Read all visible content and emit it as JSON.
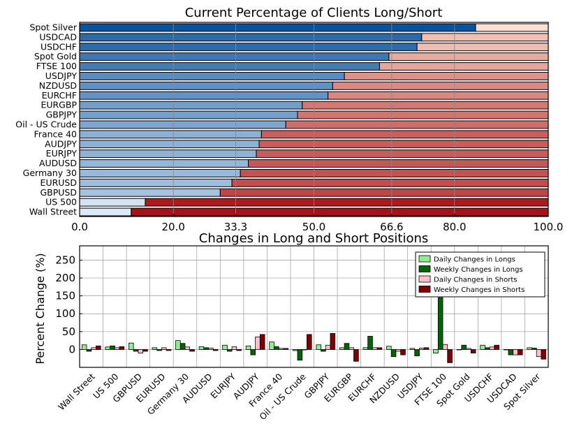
{
  "chart_data": [
    {
      "type": "bar",
      "orientation": "horizontal",
      "stacked": true,
      "title": "Current Percentage of Clients Long/Short",
      "categories": [
        "Spot Silver",
        "USDCAD",
        "USDCHF",
        "Spot Gold",
        "FTSE 100",
        "USDJPY",
        "NZDUSD",
        "EURCHF",
        "EURGBP",
        "GBPJPY",
        "Oil - US Crude",
        "France 40",
        "AUDJPY",
        "EURJPY",
        "AUDUSD",
        "Germany 30",
        "EURUSD",
        "GBPUSD",
        "US 500",
        "Wall Street"
      ],
      "long_pct": [
        84.5,
        73,
        72,
        66,
        64,
        56.5,
        54,
        53,
        47.5,
        46.5,
        44,
        38.8,
        38.3,
        37.7,
        36,
        34.3,
        32.5,
        30,
        14,
        11
      ],
      "xlim": [
        0,
        100
      ],
      "xticks": [
        "0.0",
        "20.0",
        "33.3",
        "50.0",
        "66.6",
        "80.0",
        "100.0"
      ],
      "highlight_ticks": [
        "33.3",
        "66.6"
      ],
      "highlight_color": "#800080",
      "grid": true,
      "long_color_light": "#deebf7",
      "long_color_dark": "#08519c",
      "short_color_light": "#fee0d2",
      "short_color_dark": "#a50f15"
    },
    {
      "type": "bar",
      "title": "Changes in Long and Short Positions",
      "ylabel": "Percent Change (%)",
      "ylim": [
        -50,
        290
      ],
      "yticks": [
        "0",
        "50",
        "100",
        "150",
        "200",
        "250"
      ],
      "grid": true,
      "legend_position": "top-right",
      "categories": [
        "Wall Street",
        "US 500",
        "GBPUSD",
        "EURUSD",
        "Germany 30",
        "AUDUSD",
        "EURJPY",
        "AUDJPY",
        "France 40",
        "Oil - US Crude",
        "GBPJPY",
        "EURGBP",
        "EURCHF",
        "NZDUSD",
        "USDJPY",
        "FTSE 100",
        "Spot Gold",
        "USDCHF",
        "USDCAD",
        "Spot Silver"
      ],
      "series": [
        {
          "name": "Daily Changes in Longs",
          "color": "#90ee90",
          "values": [
            13,
            7,
            18,
            5,
            25,
            8,
            12,
            10,
            21,
            -3,
            13,
            5,
            5,
            9,
            3,
            -10,
            0,
            12,
            0,
            5
          ]
        },
        {
          "name": "Weekly Changes in Longs",
          "color": "#006400",
          "values": [
            -5,
            10,
            -5,
            -3,
            17,
            5,
            -5,
            -15,
            8,
            -30,
            -5,
            17,
            37,
            -20,
            -18,
            145,
            12,
            5,
            -15,
            4
          ]
        },
        {
          "name": "Daily Changes in Shorts",
          "color": "#ffc0cb",
          "values": [
            5,
            5,
            -10,
            5,
            7,
            4,
            8,
            35,
            3,
            0,
            12,
            5,
            5,
            -5,
            4,
            14,
            3,
            7,
            -15,
            -20
          ]
        },
        {
          "name": "Weekly Changes in Shorts",
          "color": "#800000",
          "values": [
            10,
            8,
            -5,
            -3,
            -5,
            -3,
            -3,
            42,
            3,
            42,
            45,
            -33,
            5,
            -15,
            5,
            -37,
            -10,
            12,
            -15,
            -27
          ]
        }
      ]
    }
  ]
}
